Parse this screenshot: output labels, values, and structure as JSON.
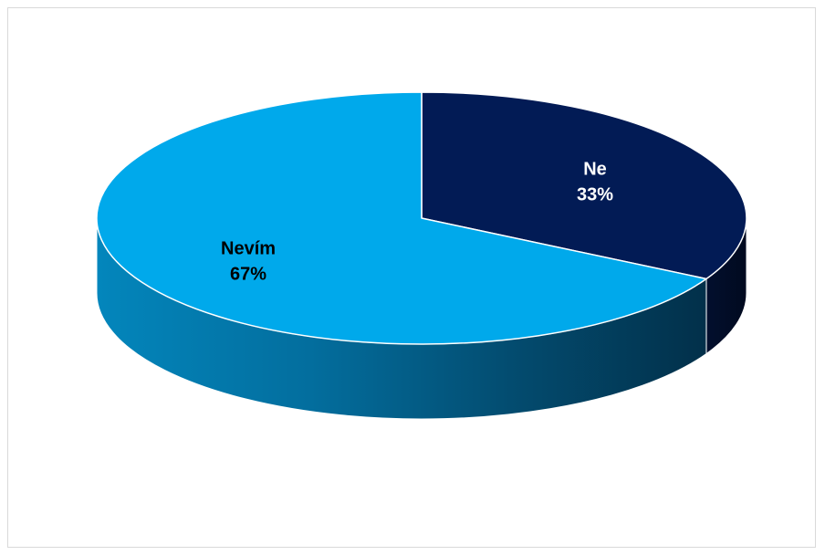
{
  "chart_data": {
    "type": "pie",
    "style": "3d",
    "slices": [
      {
        "label": "Ne",
        "value": 33,
        "pct_label": "33%",
        "color": "#021B55",
        "label_color": "#ffffff"
      },
      {
        "label": "Nevím",
        "value": 67,
        "pct_label": "67%",
        "color": "#00A9EB",
        "label_color": "#000000"
      }
    ],
    "legend": "none"
  }
}
